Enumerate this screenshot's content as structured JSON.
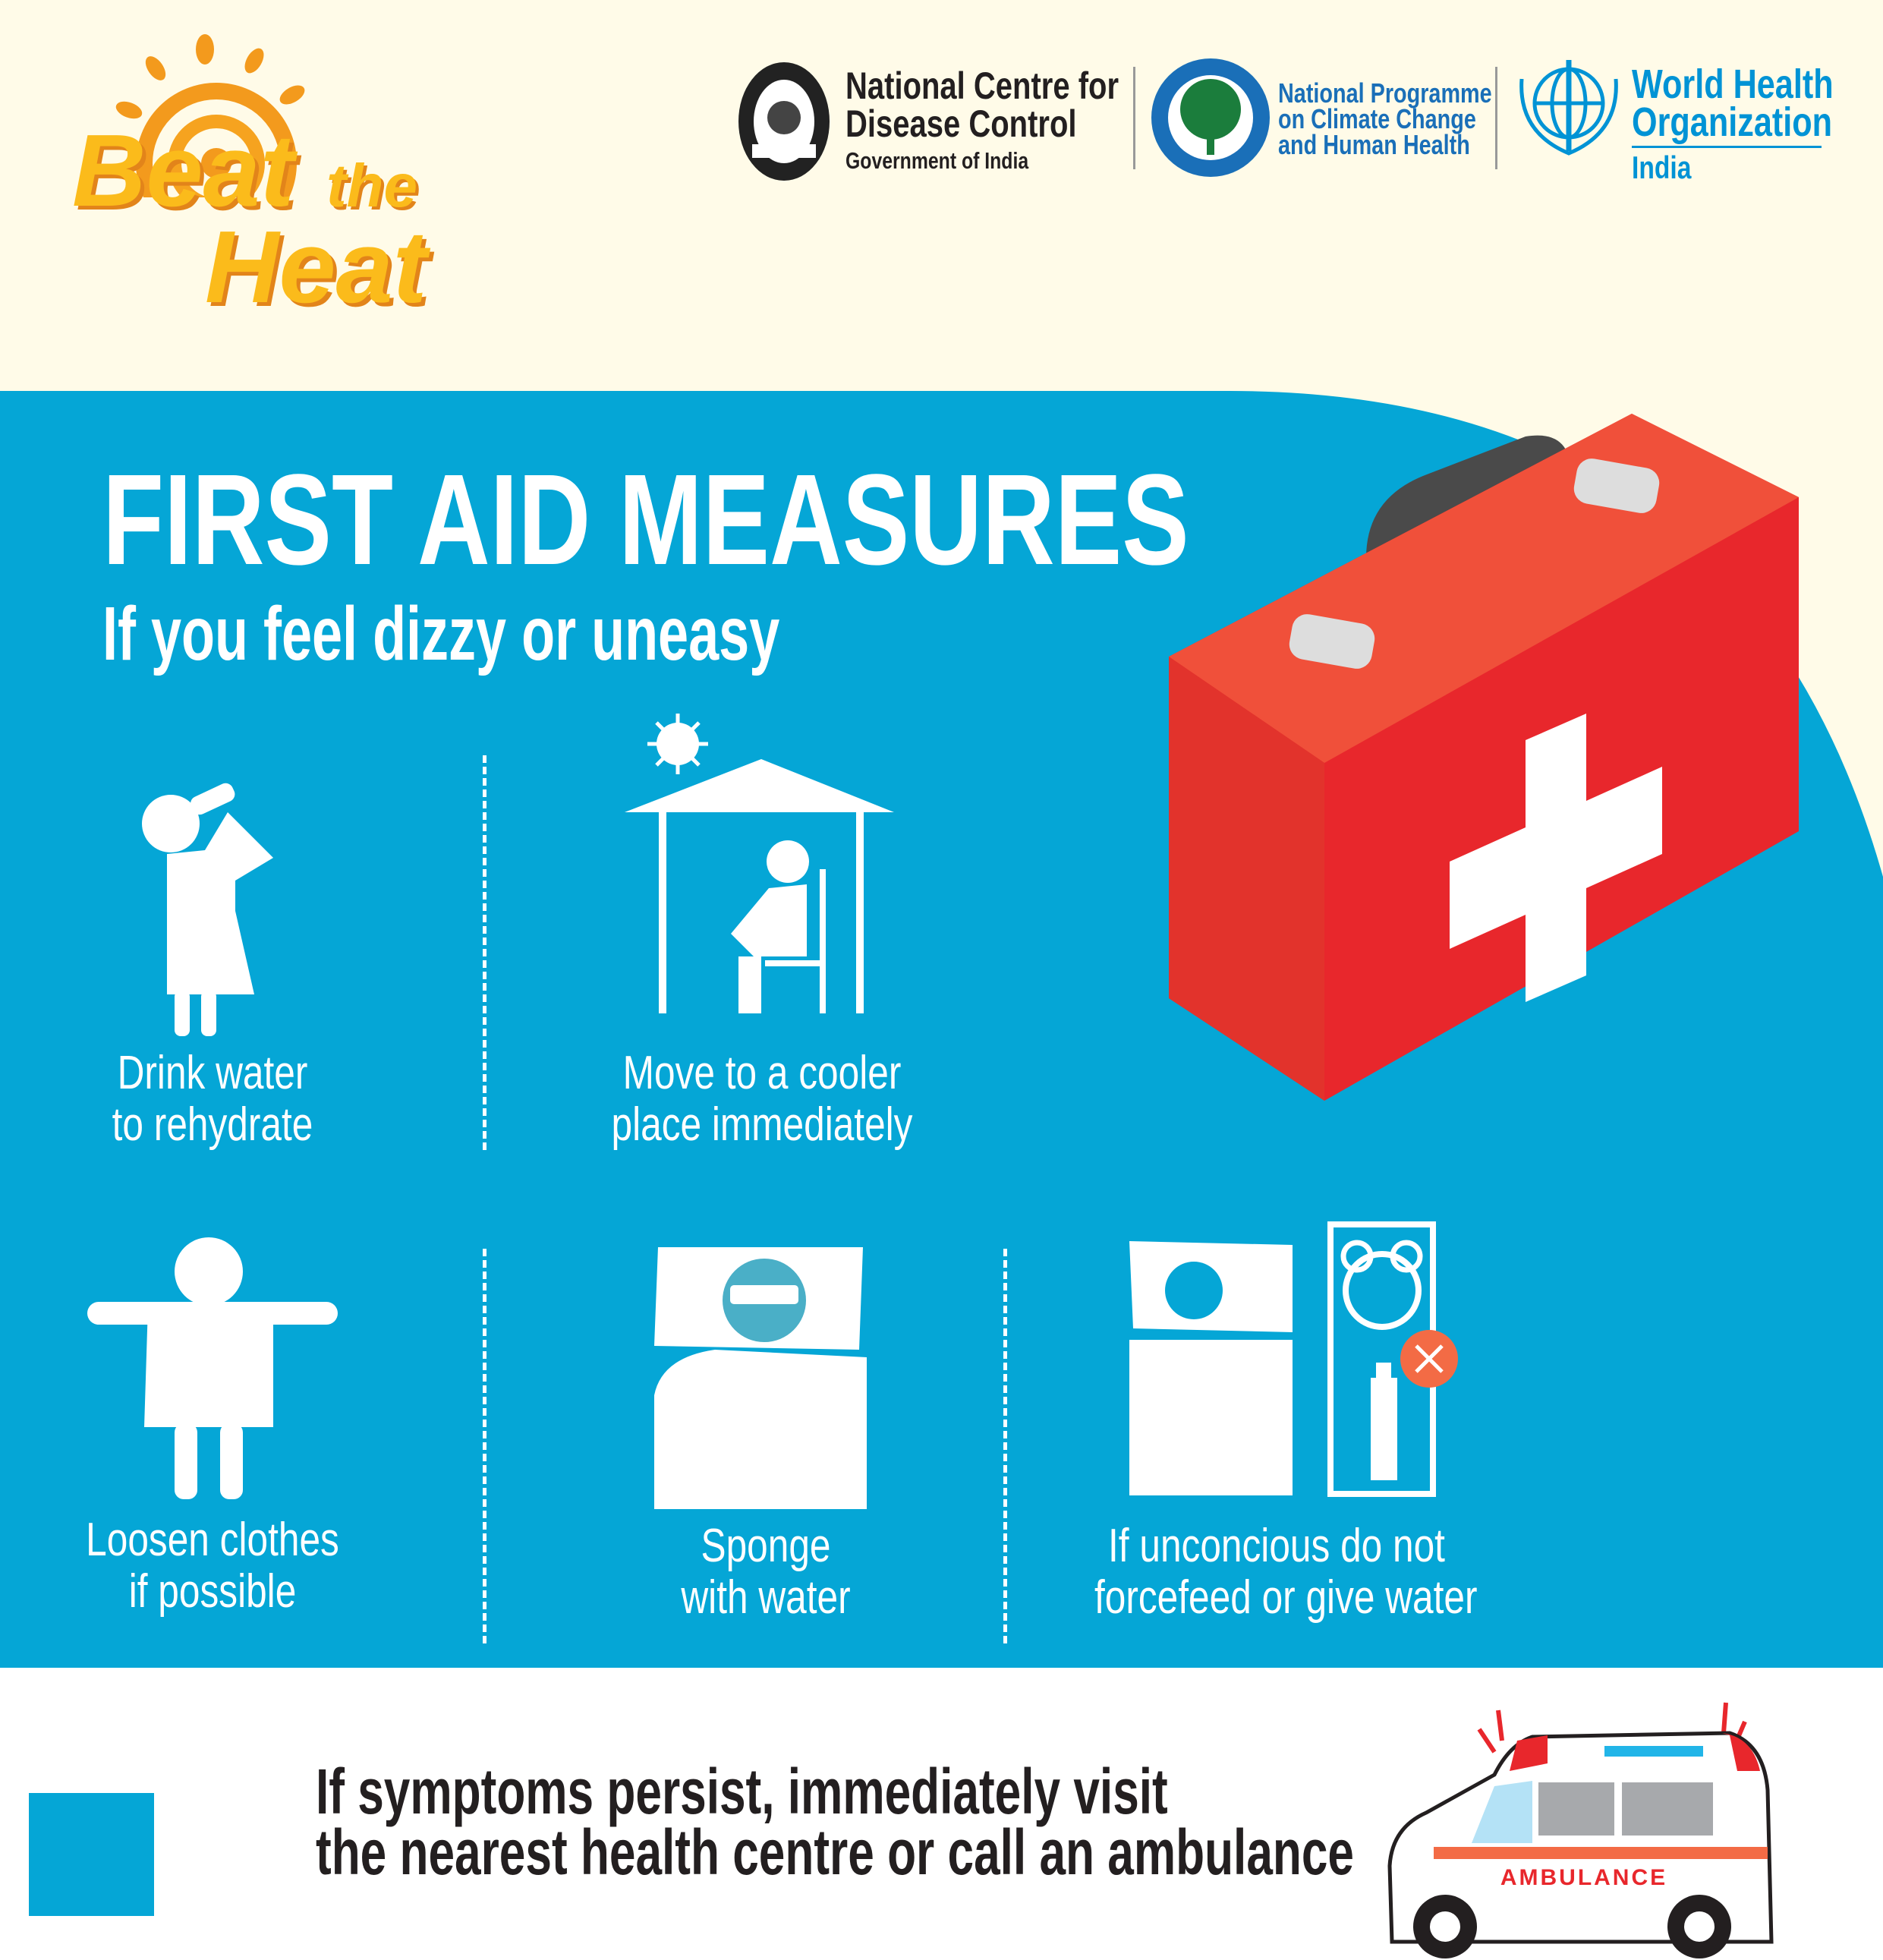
{
  "logo": {
    "line1": "Beat",
    "line2": "the",
    "line3": "Heat"
  },
  "partners": [
    {
      "name_line1": "National Centre for",
      "name_line2": "Disease Control",
      "sub": "Government of India",
      "emblem": "ncdc-seal"
    },
    {
      "name_line1": "National Programme",
      "name_line2": "on Climate Change",
      "name_line3": "and Human Health",
      "emblem": "npcchh-tree-seal"
    },
    {
      "name_line1": "World Health",
      "name_line2": "Organization",
      "sub": "India",
      "emblem": "who-emblem"
    }
  ],
  "main": {
    "title": "FIRST AID MEASURES",
    "subtitle": "If you feel dizzy or uneasy",
    "measures": [
      {
        "line1": "Drink water",
        "line2": "to rehydrate",
        "icon": "drinking-person-icon"
      },
      {
        "line1": "Move to a cooler",
        "line2": "place immediately",
        "icon": "shade-shelter-icon"
      },
      {
        "line1": "Loosen clothes",
        "line2": "if possible",
        "icon": "loose-clothes-icon"
      },
      {
        "line1": "Sponge",
        "line2": "with water",
        "icon": "sponge-bed-icon"
      },
      {
        "line1": "If unconcious do not",
        "line2": "forcefeed or give water",
        "icon": "no-water-icon"
      }
    ]
  },
  "footer": {
    "line1": "If symptoms persist, immediately visit",
    "line2": "the nearest health centre or call an ambulance",
    "ambulance_label": "AMBULANCE"
  },
  "colors": {
    "blue": "#05a6d6",
    "cream": "#fffbe8",
    "red": "#e8272c",
    "orange": "#f36b45"
  }
}
